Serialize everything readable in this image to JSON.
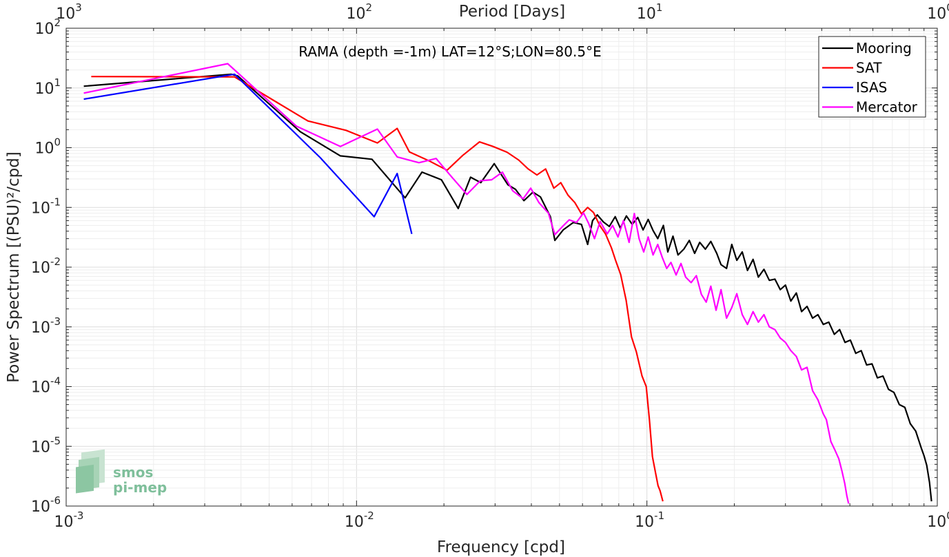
{
  "chart_data": {
    "type": "line",
    "title": "RAMA (depth =-1m) LAT=12°S;LON=80.5°E",
    "xlabel": "Frequency [cpd]",
    "ylabel": "Power Spectrum [(PSU)²/cpd]",
    "x2label": "Period [Days]",
    "xscale": "log",
    "yscale": "log",
    "xlim": [
      0.001,
      1
    ],
    "ylim": [
      1e-06,
      100
    ],
    "x_ticks": [
      {
        "value": 0.001,
        "base": "10",
        "exp": "-3"
      },
      {
        "value": 0.01,
        "base": "10",
        "exp": "-2"
      },
      {
        "value": 0.1,
        "base": "10",
        "exp": "-1"
      },
      {
        "value": 1,
        "base": "10",
        "exp": "0"
      }
    ],
    "x2_ticks": [
      {
        "value": 1000,
        "base": "10",
        "exp": "3"
      },
      {
        "value": 100,
        "base": "10",
        "exp": "2"
      },
      {
        "value": 10,
        "base": "10",
        "exp": "1"
      },
      {
        "value": 1,
        "base": "10",
        "exp": "0"
      }
    ],
    "y_ticks": [
      {
        "value": 1e-06,
        "base": "10",
        "exp": "-6"
      },
      {
        "value": 1e-05,
        "base": "10",
        "exp": "-5"
      },
      {
        "value": 0.0001,
        "base": "10",
        "exp": "-4"
      },
      {
        "value": 0.001,
        "base": "10",
        "exp": "-3"
      },
      {
        "value": 0.01,
        "base": "10",
        "exp": "-2"
      },
      {
        "value": 0.1,
        "base": "10",
        "exp": "-1"
      },
      {
        "value": 1,
        "base": "10",
        "exp": "0"
      },
      {
        "value": 10,
        "base": "10",
        "exp": "1"
      },
      {
        "value": 100,
        "base": "10",
        "exp": "2"
      }
    ],
    "grid": true,
    "legend_position": "top-right",
    "series": [
      {
        "name": "Mooring",
        "color": "#000000",
        "points": [
          [
            0.00115,
            10.7
          ],
          [
            0.0037,
            17
          ],
          [
            0.0039,
            15.9
          ],
          [
            0.0064,
            1.85
          ],
          [
            0.0088,
            0.73
          ],
          [
            0.0113,
            0.64
          ],
          [
            0.0147,
            0.145
          ],
          [
            0.0168,
            0.39
          ],
          [
            0.0196,
            0.29
          ],
          [
            0.0224,
            0.096
          ],
          [
            0.0247,
            0.32
          ],
          [
            0.0268,
            0.26
          ],
          [
            0.0298,
            0.54
          ],
          [
            0.0332,
            0.24
          ],
          [
            0.0353,
            0.2
          ],
          [
            0.0377,
            0.13
          ],
          [
            0.0405,
            0.18
          ],
          [
            0.043,
            0.15
          ],
          [
            0.0465,
            0.07
          ],
          [
            0.0482,
            0.028
          ],
          [
            0.0515,
            0.042
          ],
          [
            0.0558,
            0.056
          ],
          [
            0.0595,
            0.052
          ],
          [
            0.0625,
            0.024
          ],
          [
            0.065,
            0.06
          ],
          [
            0.0675,
            0.075
          ],
          [
            0.0708,
            0.057
          ],
          [
            0.0742,
            0.048
          ],
          [
            0.0778,
            0.07
          ],
          [
            0.081,
            0.045
          ],
          [
            0.085,
            0.072
          ],
          [
            0.089,
            0.052
          ],
          [
            0.093,
            0.068
          ],
          [
            0.097,
            0.042
          ],
          [
            0.101,
            0.063
          ],
          [
            0.105,
            0.041
          ],
          [
            0.109,
            0.03
          ],
          [
            0.114,
            0.05
          ],
          [
            0.118,
            0.018
          ],
          [
            0.123,
            0.033
          ],
          [
            0.128,
            0.016
          ],
          [
            0.134,
            0.02
          ],
          [
            0.14,
            0.028
          ],
          [
            0.146,
            0.017
          ],
          [
            0.152,
            0.026
          ],
          [
            0.159,
            0.02
          ],
          [
            0.166,
            0.027
          ],
          [
            0.174,
            0.017
          ],
          [
            0.18,
            0.011
          ],
          [
            0.188,
            0.0095
          ],
          [
            0.196,
            0.024
          ],
          [
            0.204,
            0.013
          ],
          [
            0.213,
            0.018
          ],
          [
            0.222,
            0.0088
          ],
          [
            0.232,
            0.0135
          ],
          [
            0.242,
            0.0068
          ],
          [
            0.253,
            0.0092
          ],
          [
            0.264,
            0.006
          ],
          [
            0.276,
            0.0063
          ],
          [
            0.288,
            0.0042
          ],
          [
            0.3,
            0.005
          ],
          [
            0.313,
            0.0027
          ],
          [
            0.327,
            0.0037
          ],
          [
            0.341,
            0.0018
          ],
          [
            0.356,
            0.0022
          ],
          [
            0.372,
            0.0014
          ],
          [
            0.388,
            0.0016
          ],
          [
            0.405,
            0.0011
          ],
          [
            0.423,
            0.0012
          ],
          [
            0.442,
            0.00075
          ],
          [
            0.461,
            0.0009
          ],
          [
            0.481,
            0.00055
          ],
          [
            0.502,
            0.0006
          ],
          [
            0.524,
            0.00036
          ],
          [
            0.547,
            0.0004
          ],
          [
            0.571,
            0.00023
          ],
          [
            0.596,
            0.00024
          ],
          [
            0.622,
            0.00014
          ],
          [
            0.65,
            0.00015
          ],
          [
            0.679,
            9e-05
          ],
          [
            0.709,
            8e-05
          ],
          [
            0.74,
            5e-05
          ],
          [
            0.773,
            4.5e-05
          ],
          [
            0.807,
            2.4e-05
          ],
          [
            0.843,
            1.8e-05
          ],
          [
            0.88,
            9.5e-06
          ],
          [
            0.9,
            7e-06
          ],
          [
            0.92,
            4.8e-06
          ],
          [
            0.94,
            2.5e-06
          ],
          [
            0.955,
            1.2e-06
          ]
        ]
      },
      {
        "name": "SAT",
        "color": "#ff0000",
        "points": [
          [
            0.00122,
            15.5
          ],
          [
            0.0038,
            15.3
          ],
          [
            0.0068,
            2.8
          ],
          [
            0.0092,
            1.95
          ],
          [
            0.0118,
            1.2
          ],
          [
            0.0138,
            2.1
          ],
          [
            0.0152,
            0.85
          ],
          [
            0.0178,
            0.6
          ],
          [
            0.0205,
            0.42
          ],
          [
            0.0232,
            0.74
          ],
          [
            0.0265,
            1.25
          ],
          [
            0.0295,
            1.05
          ],
          [
            0.033,
            0.84
          ],
          [
            0.0362,
            0.62
          ],
          [
            0.039,
            0.44
          ],
          [
            0.0418,
            0.35
          ],
          [
            0.0448,
            0.44
          ],
          [
            0.0478,
            0.21
          ],
          [
            0.0505,
            0.26
          ],
          [
            0.0535,
            0.16
          ],
          [
            0.0565,
            0.12
          ],
          [
            0.0595,
            0.078
          ],
          [
            0.0625,
            0.1
          ],
          [
            0.0655,
            0.082
          ],
          [
            0.0688,
            0.05
          ],
          [
            0.072,
            0.036
          ],
          [
            0.0755,
            0.021
          ],
          [
            0.078,
            0.013
          ],
          [
            0.0812,
            0.0075
          ],
          [
            0.0848,
            0.0028
          ],
          [
            0.0885,
            0.00068
          ],
          [
            0.092,
            0.00038
          ],
          [
            0.0962,
            0.00015
          ],
          [
            0.0995,
            0.0001
          ],
          [
            0.102,
            2.8e-05
          ],
          [
            0.1045,
            6.7e-06
          ],
          [
            0.1072,
            3.5e-06
          ],
          [
            0.1092,
            2.2e-06
          ],
          [
            0.111,
            1.8e-06
          ],
          [
            0.1135,
            1.2e-06
          ]
        ]
      },
      {
        "name": "ISAS",
        "color": "#0000ff",
        "points": [
          [
            0.00115,
            6.5
          ],
          [
            0.0038,
            17
          ],
          [
            0.0075,
            0.68
          ],
          [
            0.0115,
            0.07
          ],
          [
            0.0138,
            0.37
          ],
          [
            0.0155,
            0.036
          ]
        ]
      },
      {
        "name": "Mercator",
        "color": "#ff00ff",
        "points": [
          [
            0.00115,
            8.2
          ],
          [
            0.0036,
            25.5
          ],
          [
            0.0062,
            2.3
          ],
          [
            0.0088,
            1.05
          ],
          [
            0.0118,
            2.05
          ],
          [
            0.0138,
            0.7
          ],
          [
            0.0164,
            0.56
          ],
          [
            0.0188,
            0.66
          ],
          [
            0.0212,
            0.33
          ],
          [
            0.024,
            0.165
          ],
          [
            0.0267,
            0.28
          ],
          [
            0.0292,
            0.29
          ],
          [
            0.0318,
            0.39
          ],
          [
            0.0345,
            0.19
          ],
          [
            0.0375,
            0.14
          ],
          [
            0.0398,
            0.21
          ],
          [
            0.0425,
            0.12
          ],
          [
            0.0458,
            0.08
          ],
          [
            0.0482,
            0.035
          ],
          [
            0.051,
            0.047
          ],
          [
            0.054,
            0.062
          ],
          [
            0.0572,
            0.056
          ],
          [
            0.0605,
            0.081
          ],
          [
            0.063,
            0.054
          ],
          [
            0.066,
            0.03
          ],
          [
            0.069,
            0.058
          ],
          [
            0.073,
            0.036
          ],
          [
            0.0762,
            0.05
          ],
          [
            0.0795,
            0.032
          ],
          [
            0.083,
            0.06
          ],
          [
            0.0868,
            0.026
          ],
          [
            0.0905,
            0.079
          ],
          [
            0.094,
            0.03
          ],
          [
            0.0975,
            0.018
          ],
          [
            0.101,
            0.032
          ],
          [
            0.105,
            0.016
          ],
          [
            0.109,
            0.024
          ],
          [
            0.113,
            0.0145
          ],
          [
            0.117,
            0.0095
          ],
          [
            0.121,
            0.012
          ],
          [
            0.126,
            0.0074
          ],
          [
            0.131,
            0.0115
          ],
          [
            0.136,
            0.0068
          ],
          [
            0.142,
            0.0055
          ],
          [
            0.148,
            0.0072
          ],
          [
            0.154,
            0.0035
          ],
          [
            0.16,
            0.0026
          ],
          [
            0.166,
            0.0048
          ],
          [
            0.173,
            0.0019
          ],
          [
            0.18,
            0.0042
          ],
          [
            0.188,
            0.0014
          ],
          [
            0.196,
            0.0021
          ],
          [
            0.204,
            0.0036
          ],
          [
            0.213,
            0.0016
          ],
          [
            0.222,
            0.0011
          ],
          [
            0.232,
            0.0018
          ],
          [
            0.242,
            0.0012
          ],
          [
            0.253,
            0.0016
          ],
          [
            0.264,
            0.001
          ],
          [
            0.276,
            0.0009
          ],
          [
            0.288,
            0.00065
          ],
          [
            0.3,
            0.00055
          ],
          [
            0.313,
            0.0004
          ],
          [
            0.327,
            0.00032
          ],
          [
            0.341,
            0.00019
          ],
          [
            0.356,
            0.00021
          ],
          [
            0.372,
            8.5e-05
          ],
          [
            0.388,
            6e-05
          ],
          [
            0.405,
            3.5e-05
          ],
          [
            0.415,
            2.8e-05
          ],
          [
            0.43,
            1.2e-05
          ],
          [
            0.445,
            8.5e-06
          ],
          [
            0.458,
            6.2e-06
          ],
          [
            0.47,
            3.8e-06
          ],
          [
            0.48,
            2.4e-06
          ],
          [
            0.488,
            1.5e-06
          ],
          [
            0.495,
            1.1e-06
          ]
        ]
      }
    ]
  },
  "logo": {
    "line1": "smos",
    "line2": "pi-mep"
  }
}
